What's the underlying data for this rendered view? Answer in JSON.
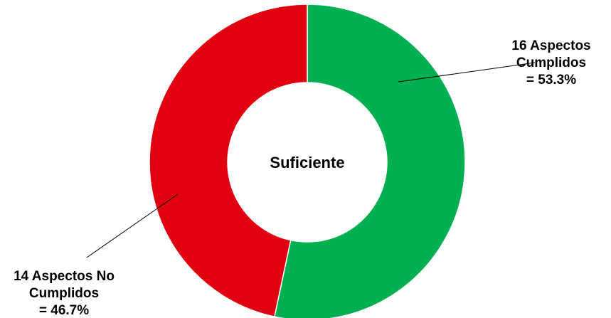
{
  "chart_data": {
    "type": "pie",
    "variant": "donut",
    "center_label": "Suficiente",
    "slices": [
      {
        "count": 16,
        "percent": 53.3,
        "color": "#00b050",
        "label_lines": [
          "16 Aspectos",
          "Cumplidos",
          "= 53.3%"
        ]
      },
      {
        "count": 14,
        "percent": 46.7,
        "color": "#e00010",
        "label_lines": [
          "14 Aspectos No",
          "Cumplidos",
          "= 46.7%"
        ]
      }
    ]
  }
}
